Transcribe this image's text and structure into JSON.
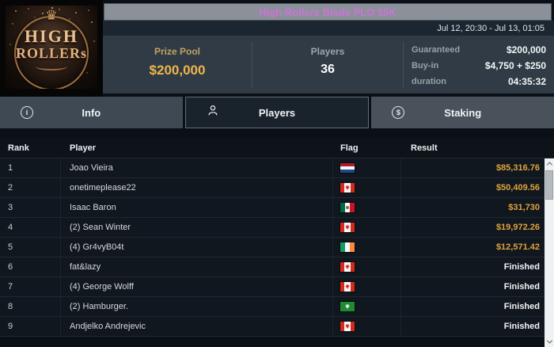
{
  "header": {
    "title": "High Rollers Blade PLO $5K",
    "schedule": "Jul 12, 20:30 - Jul 13, 01:05"
  },
  "logo": {
    "crown": "♛",
    "line1": "HIGH",
    "line2": "ROLLERs"
  },
  "stats": {
    "prize_pool": {
      "label": "Prize Pool",
      "value": "$200,000"
    },
    "players": {
      "label": "Players",
      "value": "36"
    },
    "details": [
      {
        "label": "Guaranteed",
        "value": "$200,000"
      },
      {
        "label": "Buy-in",
        "value": "$4,750 + $250"
      },
      {
        "label": "duration",
        "value": "04:35:32"
      }
    ]
  },
  "tabs": [
    {
      "label": "Info",
      "icon": "info-icon",
      "selected": false
    },
    {
      "label": "Players",
      "icon": "players-icon",
      "selected": true
    },
    {
      "label": "Staking",
      "icon": "staking-icon",
      "selected": false
    }
  ],
  "table": {
    "columns": [
      "Rank",
      "Player",
      "Flag",
      "Result"
    ],
    "rows": [
      {
        "rank": "1",
        "player": "Joao Vieira",
        "flag": "Netherlands",
        "result": "$85,316.76",
        "finished": false
      },
      {
        "rank": "2",
        "player": "onetimeplease22",
        "flag": "Canada",
        "result": "$50,409.56",
        "finished": false
      },
      {
        "rank": "3",
        "player": "Isaac Baron",
        "flag": "Mexico",
        "result": "$31,730",
        "finished": false
      },
      {
        "rank": "4",
        "player": "(2) Sean Winter",
        "flag": "Canada",
        "result": "$19,972.26",
        "finished": false
      },
      {
        "rank": "5",
        "player": "(4) Gr4vyB04t",
        "flag": "Ireland",
        "result": "$12,571.42",
        "finished": false
      },
      {
        "rank": "6",
        "player": "fat&lazy",
        "flag": "Canada",
        "result": "Finished",
        "finished": true
      },
      {
        "rank": "7",
        "player": "(4) George Wolff",
        "flag": "Canada",
        "result": "Finished",
        "finished": true
      },
      {
        "rank": "8",
        "player": "(2) Hamburger.",
        "flag": "Green",
        "result": "Finished",
        "finished": true
      },
      {
        "rank": "9",
        "player": "Andjelko Andrejevic",
        "flag": "Canada",
        "result": "Finished",
        "finished": true
      }
    ]
  },
  "colors": {
    "title_magenta": "#cb74d8",
    "gold_accent": "#dda33e",
    "prize_gold": "#efb54d",
    "titlebar_gray": "#8b9198",
    "stats_bg": "#303b45",
    "selected_tab_bg": "#1a232b",
    "row_bg": "#11171e"
  }
}
